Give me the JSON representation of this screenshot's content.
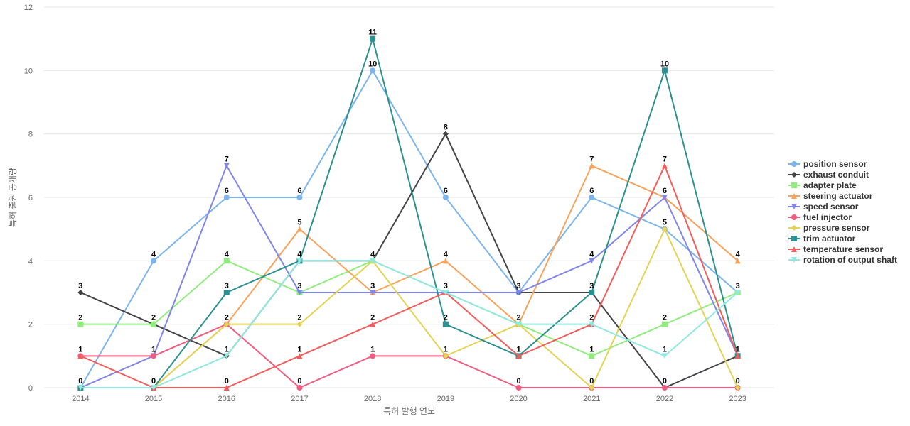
{
  "chart_data": {
    "type": "line",
    "title": "",
    "xlabel": "특허 발행 연도",
    "ylabel": "특허 출원 공개량",
    "x": [
      2014,
      2015,
      2016,
      2017,
      2018,
      2019,
      2020,
      2021,
      2022,
      2023
    ],
    "ylim": [
      0,
      12
    ],
    "yticks": [
      0,
      2,
      4,
      6,
      8,
      10,
      12
    ],
    "grid": true,
    "legend_position": "right",
    "series": [
      {
        "name": "position sensor",
        "color": "#7cb5ec",
        "marker": "circle",
        "values": [
          0,
          4,
          6,
          6,
          10,
          6,
          3,
          6,
          5,
          3
        ]
      },
      {
        "name": "exhaust conduit",
        "color": "#434348",
        "marker": "diamond",
        "values": [
          3,
          2,
          1,
          4,
          4,
          8,
          3,
          3,
          0,
          1
        ]
      },
      {
        "name": "adapter plate",
        "color": "#90ed7d",
        "marker": "square",
        "values": [
          2,
          2,
          4,
          3,
          4,
          3,
          2,
          1,
          2,
          3
        ]
      },
      {
        "name": "steering actuator",
        "color": "#f7a35c",
        "marker": "triangle",
        "values": [
          0,
          0,
          2,
          5,
          3,
          4,
          2,
          7,
          6,
          4
        ]
      },
      {
        "name": "speed sensor",
        "color": "#8085e9",
        "marker": "triangle-down",
        "values": [
          0,
          1,
          7,
          3,
          3,
          3,
          3,
          4,
          6,
          1
        ]
      },
      {
        "name": "fuel injector",
        "color": "#f15c80",
        "marker": "circle",
        "values": [
          1,
          1,
          2,
          0,
          1,
          1,
          0,
          0,
          0,
          0
        ]
      },
      {
        "name": "pressure sensor",
        "color": "#e4d354",
        "marker": "diamond",
        "values": [
          0,
          0,
          2,
          2,
          4,
          1,
          2,
          0,
          5,
          0
        ]
      },
      {
        "name": "trim actuator",
        "color": "#2b908f",
        "marker": "square",
        "values": [
          0,
          0,
          3,
          4,
          11,
          2,
          1,
          3,
          10,
          1
        ]
      },
      {
        "name": "temperature sensor",
        "color": "#f45b5b",
        "marker": "triangle",
        "values": [
          1,
          0,
          0,
          1,
          2,
          3,
          1,
          2,
          7,
          1
        ]
      },
      {
        "name": "rotation of output shaft",
        "color": "#91e8e1",
        "marker": "triangle-down",
        "values": [
          0,
          0,
          1,
          4,
          4,
          3,
          2,
          2,
          1,
          3
        ]
      }
    ],
    "data_labels": {
      "2014": [
        "3",
        "2",
        "1",
        "0"
      ],
      "2015": [
        "4",
        "2",
        "1",
        "0"
      ],
      "2016": [
        "7",
        "6",
        "4",
        "3",
        "2",
        "1",
        "0"
      ],
      "2017": [
        "6",
        "5",
        "4",
        "3",
        "2",
        "1",
        "0"
      ],
      "2018": [
        "11",
        "10",
        "4",
        "3",
        "2",
        "1"
      ],
      "2019": [
        "8",
        "6",
        "4",
        "3",
        "2",
        "1"
      ],
      "2020": [
        "3",
        "2",
        "1",
        "0"
      ],
      "2021": [
        "7",
        "6",
        "4",
        "3",
        "2",
        "1",
        "0"
      ],
      "2022": [
        "10",
        "7",
        "6",
        "5",
        "2",
        "1",
        "0"
      ],
      "2023": [
        "4",
        "3",
        "1",
        "0"
      ]
    }
  }
}
